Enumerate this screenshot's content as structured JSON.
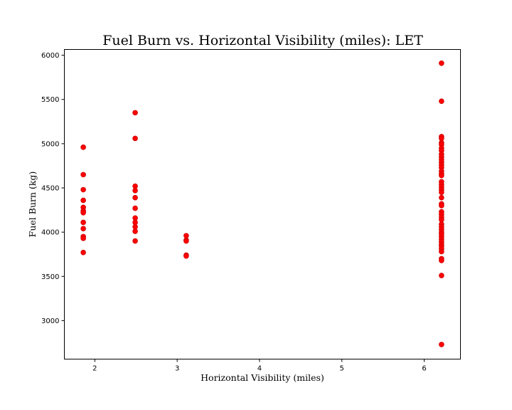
{
  "chart_data": {
    "type": "scatter",
    "title": "Fuel Burn vs. Horizontal Visibility (miles): LET",
    "xlabel": "Horizontal Visibility (miles)",
    "ylabel": "Fuel Burn (kg)",
    "xlim": [
      1.63,
      6.44
    ],
    "ylim": [
      2565,
      6065
    ],
    "xticks": [
      2,
      3,
      4,
      5,
      6
    ],
    "yticks": [
      3000,
      3500,
      4000,
      4500,
      5000,
      5500,
      6000
    ],
    "grid": false,
    "marker_color": "#ff0000",
    "series": [
      {
        "points": [
          [
            1.86,
            4960
          ],
          [
            1.86,
            4650
          ],
          [
            1.86,
            4480
          ],
          [
            1.86,
            4360
          ],
          [
            1.86,
            4280
          ],
          [
            1.86,
            4240
          ],
          [
            1.86,
            4220
          ],
          [
            1.86,
            4110
          ],
          [
            1.86,
            4040
          ],
          [
            1.86,
            3950
          ],
          [
            1.86,
            3930
          ],
          [
            1.86,
            3770
          ],
          [
            2.49,
            5350
          ],
          [
            2.49,
            5060
          ],
          [
            2.49,
            4520
          ],
          [
            2.49,
            4470
          ],
          [
            2.49,
            4390
          ],
          [
            2.49,
            4270
          ],
          [
            2.49,
            4160
          ],
          [
            2.49,
            4110
          ],
          [
            2.49,
            4060
          ],
          [
            2.49,
            4010
          ],
          [
            2.49,
            3900
          ],
          [
            3.11,
            3960
          ],
          [
            3.11,
            3910
          ],
          [
            3.11,
            3900
          ],
          [
            3.11,
            3740
          ],
          [
            3.11,
            3730
          ],
          [
            6.21,
            5910
          ],
          [
            6.21,
            5480
          ],
          [
            6.21,
            5080
          ],
          [
            6.21,
            5060
          ],
          [
            6.21,
            5010
          ],
          [
            6.21,
            4990
          ],
          [
            6.21,
            4950
          ],
          [
            6.21,
            4920
          ],
          [
            6.21,
            4880
          ],
          [
            6.21,
            4850
          ],
          [
            6.21,
            4820
          ],
          [
            6.21,
            4790
          ],
          [
            6.21,
            4760
          ],
          [
            6.21,
            4730
          ],
          [
            6.21,
            4690
          ],
          [
            6.21,
            4660
          ],
          [
            6.21,
            4640
          ],
          [
            6.21,
            4570
          ],
          [
            6.21,
            4540
          ],
          [
            6.21,
            4510
          ],
          [
            6.21,
            4480
          ],
          [
            6.21,
            4450
          ],
          [
            6.21,
            4390
          ],
          [
            6.21,
            4320
          ],
          [
            6.21,
            4300
          ],
          [
            6.21,
            4230
          ],
          [
            6.21,
            4200
          ],
          [
            6.21,
            4170
          ],
          [
            6.21,
            4140
          ],
          [
            6.21,
            4090
          ],
          [
            6.21,
            4060
          ],
          [
            6.21,
            4030
          ],
          [
            6.21,
            4000
          ],
          [
            6.21,
            3980
          ],
          [
            6.21,
            3950
          ],
          [
            6.21,
            3920
          ],
          [
            6.21,
            3890
          ],
          [
            6.21,
            3860
          ],
          [
            6.21,
            3840
          ],
          [
            6.21,
            3810
          ],
          [
            6.21,
            3780
          ],
          [
            6.21,
            3700
          ],
          [
            6.21,
            3680
          ],
          [
            6.21,
            3510
          ],
          [
            6.21,
            2730
          ]
        ]
      }
    ]
  }
}
